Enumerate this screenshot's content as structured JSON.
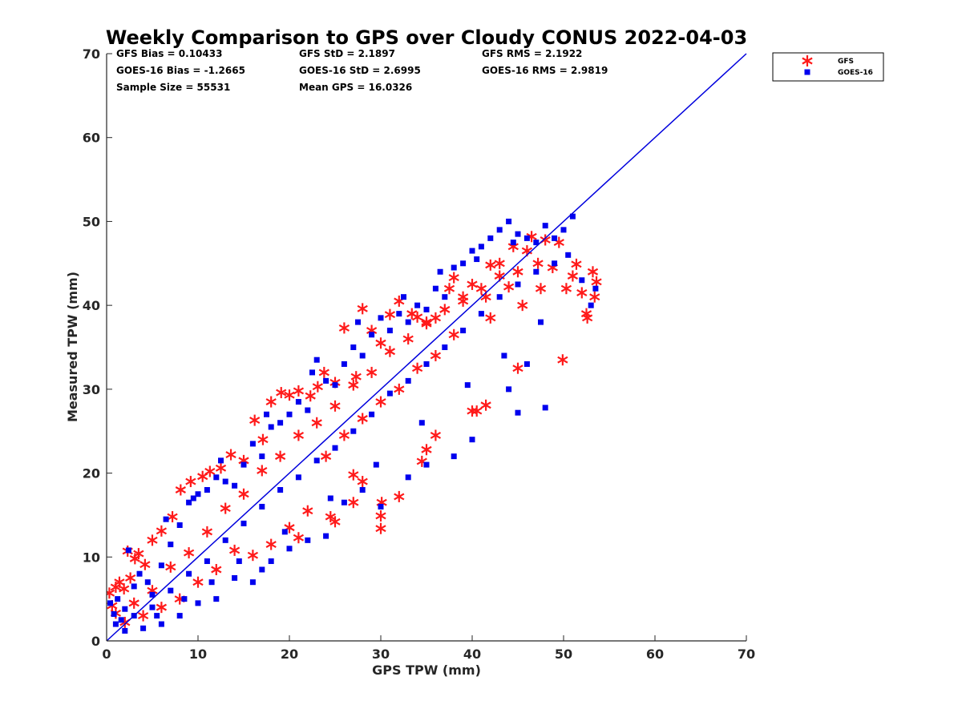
{
  "chart_data": {
    "type": "scatter",
    "title": "Weekly Comparison to GPS over Cloudy CONUS 2022-04-03",
    "xlabel": "GPS TPW (mm)",
    "ylabel": "Measured TPW (mm)",
    "xlim": [
      0,
      70
    ],
    "ylim": [
      0,
      70
    ],
    "xticks": [
      0,
      10,
      20,
      30,
      40,
      50,
      60,
      70
    ],
    "yticks": [
      0,
      10,
      20,
      30,
      40,
      50,
      60,
      70
    ],
    "grid": false,
    "legend_position": "outside-top-right",
    "reference_line": {
      "x": [
        0,
        70
      ],
      "y": [
        0,
        70
      ],
      "color": "#0000dd"
    },
    "stats": [
      [
        "GFS Bias = 0.10433",
        "GFS StD = 2.1897",
        "GFS RMS = 2.1922"
      ],
      [
        "GOES-16 Bias = -1.2665",
        "GOES-16 StD = 2.6995",
        "GOES-16 RMS = 2.9819"
      ],
      [
        "Sample Size = 55531",
        "Mean GPS = 16.0326"
      ]
    ],
    "series": [
      {
        "name": "GFS",
        "marker": "asterisk",
        "color": "#ff1a1a",
        "points": [
          [
            0.3,
            5.7
          ],
          [
            0.6,
            4.2
          ],
          [
            1.0,
            6.4
          ],
          [
            1.4,
            7.0
          ],
          [
            1.9,
            6.2
          ],
          [
            2.3,
            10.7
          ],
          [
            2.6,
            7.5
          ],
          [
            3.1,
            9.8
          ],
          [
            3.5,
            10.4
          ],
          [
            4.2,
            9.1
          ],
          [
            5.0,
            12.0
          ],
          [
            6.0,
            13.1
          ],
          [
            7.2,
            14.8
          ],
          [
            8.1,
            18.0
          ],
          [
            9.2,
            19.0
          ],
          [
            10.5,
            19.6
          ],
          [
            11.3,
            20.2
          ],
          [
            12.5,
            20.6
          ],
          [
            13.6,
            22.2
          ],
          [
            15.0,
            21.5
          ],
          [
            16.2,
            26.3
          ],
          [
            17.1,
            24.0
          ],
          [
            18.0,
            28.5
          ],
          [
            19.1,
            29.6
          ],
          [
            20.0,
            29.3
          ],
          [
            21.0,
            29.8
          ],
          [
            22.3,
            29.2
          ],
          [
            23.1,
            30.3
          ],
          [
            23.8,
            32.0
          ],
          [
            25.0,
            30.8
          ],
          [
            26.0,
            37.3
          ],
          [
            27.3,
            31.5
          ],
          [
            28.0,
            39.6
          ],
          [
            29.0,
            37.0
          ],
          [
            30.0,
            35.5
          ],
          [
            31.0,
            38.9
          ],
          [
            32.0,
            40.5
          ],
          [
            33.4,
            39.0
          ],
          [
            34.0,
            38.6
          ],
          [
            35.0,
            37.8
          ],
          [
            36.0,
            38.5
          ],
          [
            37.5,
            42.0
          ],
          [
            38.0,
            43.3
          ],
          [
            39.0,
            41.0
          ],
          [
            40.0,
            42.5
          ],
          [
            41.5,
            41.0
          ],
          [
            42.0,
            44.8
          ],
          [
            43.0,
            43.5
          ],
          [
            44.0,
            42.2
          ],
          [
            45.0,
            44.0
          ],
          [
            46.0,
            46.5
          ],
          [
            47.2,
            45.0
          ],
          [
            48.0,
            47.8
          ],
          [
            48.8,
            44.5
          ],
          [
            49.5,
            47.5
          ],
          [
            50.3,
            42.0
          ],
          [
            51.0,
            43.5
          ],
          [
            51.4,
            44.9
          ],
          [
            52.0,
            41.5
          ],
          [
            52.5,
            39.0
          ],
          [
            52.6,
            38.5
          ],
          [
            53.2,
            44.0
          ],
          [
            53.4,
            41.0
          ],
          [
            53.6,
            42.8
          ],
          [
            49.9,
            33.5
          ],
          [
            45.0,
            32.5
          ],
          [
            40.5,
            27.4
          ],
          [
            40.0,
            27.4
          ],
          [
            41.5,
            28.1
          ],
          [
            36.0,
            24.5
          ],
          [
            35.0,
            22.8
          ],
          [
            34.5,
            21.4
          ],
          [
            32.0,
            17.2
          ],
          [
            30.1,
            16.5
          ],
          [
            30.0,
            14.9
          ],
          [
            30.0,
            13.4
          ],
          [
            28.0,
            19.0
          ],
          [
            27.0,
            19.8
          ],
          [
            27.0,
            16.5
          ],
          [
            25.0,
            14.2
          ],
          [
            24.5,
            14.8
          ],
          [
            22.0,
            15.5
          ],
          [
            21.0,
            12.3
          ],
          [
            20.0,
            13.5
          ],
          [
            18.0,
            11.5
          ],
          [
            16.0,
            10.2
          ],
          [
            14.0,
            10.8
          ],
          [
            12.0,
            8.5
          ],
          [
            10.0,
            7.0
          ],
          [
            8.0,
            5.0
          ],
          [
            6.0,
            4.0
          ],
          [
            4.0,
            3.0
          ],
          [
            2.0,
            2.2
          ],
          [
            1.0,
            3.3
          ],
          [
            3.0,
            4.5
          ],
          [
            5.0,
            6.0
          ],
          [
            7.0,
            8.8
          ],
          [
            9.0,
            10.5
          ],
          [
            11.0,
            13.0
          ],
          [
            13.0,
            15.8
          ],
          [
            15.0,
            17.5
          ],
          [
            17.0,
            20.3
          ],
          [
            19.0,
            22.0
          ],
          [
            21.0,
            24.5
          ],
          [
            23.0,
            26.0
          ],
          [
            25.0,
            28.0
          ],
          [
            27.0,
            30.5
          ],
          [
            29.0,
            32.0
          ],
          [
            31.0,
            34.5
          ],
          [
            33.0,
            36.0
          ],
          [
            35.0,
            38.0
          ],
          [
            37.0,
            39.5
          ],
          [
            39.0,
            40.5
          ],
          [
            41.0,
            42.0
          ],
          [
            43.0,
            45.0
          ],
          [
            44.5,
            47.0
          ],
          [
            46.5,
            48.2
          ],
          [
            24.0,
            22.0
          ],
          [
            26.0,
            24.5
          ],
          [
            28.0,
            26.5
          ],
          [
            30.0,
            28.5
          ],
          [
            32.0,
            30.0
          ],
          [
            34.0,
            32.5
          ],
          [
            36.0,
            34.0
          ],
          [
            38.0,
            36.5
          ],
          [
            42.0,
            38.5
          ],
          [
            45.5,
            40.0
          ],
          [
            47.5,
            42.0
          ]
        ]
      },
      {
        "name": "GOES-16",
        "marker": "square",
        "color": "#0000ee",
        "points": [
          [
            0.4,
            4.5
          ],
          [
            0.8,
            3.2
          ],
          [
            1.2,
            5.0
          ],
          [
            1.6,
            2.5
          ],
          [
            2.0,
            3.8
          ],
          [
            2.4,
            10.8
          ],
          [
            3.0,
            6.5
          ],
          [
            3.6,
            8.0
          ],
          [
            4.5,
            7.0
          ],
          [
            5.0,
            5.5
          ],
          [
            6.0,
            9.0
          ],
          [
            7.0,
            11.5
          ],
          [
            8.0,
            13.8
          ],
          [
            9.0,
            16.5
          ],
          [
            10.0,
            17.5
          ],
          [
            11.0,
            18.0
          ],
          [
            12.0,
            19.5
          ],
          [
            13.0,
            19.0
          ],
          [
            14.0,
            18.5
          ],
          [
            15.0,
            21.0
          ],
          [
            16.0,
            23.5
          ],
          [
            17.0,
            22.0
          ],
          [
            18.0,
            25.5
          ],
          [
            19.0,
            26.0
          ],
          [
            20.0,
            27.0
          ],
          [
            21.0,
            28.5
          ],
          [
            22.0,
            27.5
          ],
          [
            23.0,
            33.5
          ],
          [
            24.0,
            31.0
          ],
          [
            25.0,
            30.5
          ],
          [
            26.0,
            33.0
          ],
          [
            27.0,
            35.0
          ],
          [
            28.0,
            34.0
          ],
          [
            29.0,
            36.5
          ],
          [
            30.0,
            38.5
          ],
          [
            31.0,
            37.0
          ],
          [
            32.0,
            39.0
          ],
          [
            33.0,
            38.0
          ],
          [
            34.0,
            40.0
          ],
          [
            35.0,
            39.5
          ],
          [
            36.0,
            42.0
          ],
          [
            37.0,
            41.0
          ],
          [
            38.0,
            44.5
          ],
          [
            39.0,
            45.0
          ],
          [
            40.0,
            46.5
          ],
          [
            41.0,
            47.0
          ],
          [
            42.0,
            48.0
          ],
          [
            43.0,
            49.0
          ],
          [
            44.0,
            50.0
          ],
          [
            45.0,
            48.5
          ],
          [
            46.0,
            48.0
          ],
          [
            47.0,
            47.5
          ],
          [
            48.0,
            49.5
          ],
          [
            49.0,
            48.0
          ],
          [
            50.0,
            49.0
          ],
          [
            51.0,
            50.6
          ],
          [
            50.5,
            46.0
          ],
          [
            52.0,
            43.0
          ],
          [
            53.0,
            40.0
          ],
          [
            53.5,
            42.0
          ],
          [
            48.0,
            27.8
          ],
          [
            45.0,
            27.2
          ],
          [
            44.0,
            30.0
          ],
          [
            46.0,
            33.0
          ],
          [
            40.0,
            24.0
          ],
          [
            38.0,
            22.0
          ],
          [
            35.0,
            21.0
          ],
          [
            33.0,
            19.5
          ],
          [
            30.0,
            16.0
          ],
          [
            28.0,
            18.0
          ],
          [
            26.0,
            16.5
          ],
          [
            24.0,
            12.5
          ],
          [
            22.0,
            12.0
          ],
          [
            20.0,
            11.0
          ],
          [
            18.0,
            9.5
          ],
          [
            17.0,
            8.5
          ],
          [
            16.0,
            7.0
          ],
          [
            14.0,
            7.5
          ],
          [
            12.0,
            5.0
          ],
          [
            10.0,
            4.5
          ],
          [
            8.0,
            3.0
          ],
          [
            6.0,
            2.0
          ],
          [
            4.0,
            1.5
          ],
          [
            2.0,
            1.2
          ],
          [
            1.0,
            2.0
          ],
          [
            3.0,
            3.0
          ],
          [
            5.0,
            4.0
          ],
          [
            7.0,
            6.0
          ],
          [
            9.0,
            8.0
          ],
          [
            11.0,
            9.5
          ],
          [
            13.0,
            12.0
          ],
          [
            15.0,
            14.0
          ],
          [
            17.0,
            16.0
          ],
          [
            19.0,
            18.0
          ],
          [
            21.0,
            19.5
          ],
          [
            23.0,
            21.5
          ],
          [
            25.0,
            23.0
          ],
          [
            27.0,
            25.0
          ],
          [
            29.0,
            27.0
          ],
          [
            31.0,
            29.5
          ],
          [
            33.0,
            31.0
          ],
          [
            35.0,
            33.0
          ],
          [
            37.0,
            35.0
          ],
          [
            39.0,
            37.0
          ],
          [
            41.0,
            39.0
          ],
          [
            43.0,
            41.0
          ],
          [
            45.0,
            42.5
          ],
          [
            47.0,
            44.0
          ],
          [
            49.0,
            45.0
          ],
          [
            6.5,
            14.5
          ],
          [
            9.5,
            17.0
          ],
          [
            12.5,
            21.5
          ],
          [
            17.5,
            27.0
          ],
          [
            22.5,
            32.0
          ],
          [
            27.5,
            38.0
          ],
          [
            32.5,
            41.0
          ],
          [
            36.5,
            44.0
          ],
          [
            40.5,
            45.5
          ],
          [
            44.5,
            47.5
          ],
          [
            5.5,
            3.0
          ],
          [
            8.5,
            5.0
          ],
          [
            11.5,
            7.0
          ],
          [
            14.5,
            9.5
          ],
          [
            19.5,
            13.0
          ],
          [
            24.5,
            17.0
          ],
          [
            29.5,
            21.0
          ],
          [
            34.5,
            26.0
          ],
          [
            39.5,
            30.5
          ],
          [
            43.5,
            34.0
          ],
          [
            47.5,
            38.0
          ]
        ]
      }
    ]
  }
}
